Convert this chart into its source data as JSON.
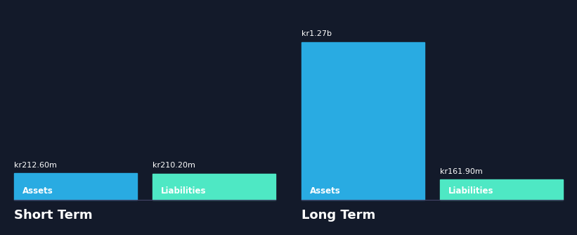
{
  "background_color": "#131a2a",
  "short_term": {
    "assets_value": 212.6,
    "liabilities_value": 210.2,
    "assets_label": "kr212.60m",
    "liabilities_label": "kr210.20m",
    "assets_color": "#29abe2",
    "liabilities_color": "#4ee8c4",
    "bar_label_assets": "Assets",
    "bar_label_liabilities": "Liabilities",
    "title": "Short Term"
  },
  "long_term": {
    "assets_value": 1270,
    "liabilities_value": 161.9,
    "assets_label": "kr1.27b",
    "liabilities_label": "kr161.90m",
    "assets_color": "#29abe2",
    "liabilities_color": "#4ee8c4",
    "bar_label_assets": "Assets",
    "bar_label_liabilities": "Liabilities",
    "title": "Long Term"
  },
  "title_fontsize": 13,
  "label_fontsize": 8.5,
  "value_label_fontsize": 8,
  "text_color": "#ffffff",
  "bar_text_color": "#ffffff",
  "title_color": "#ffffff"
}
